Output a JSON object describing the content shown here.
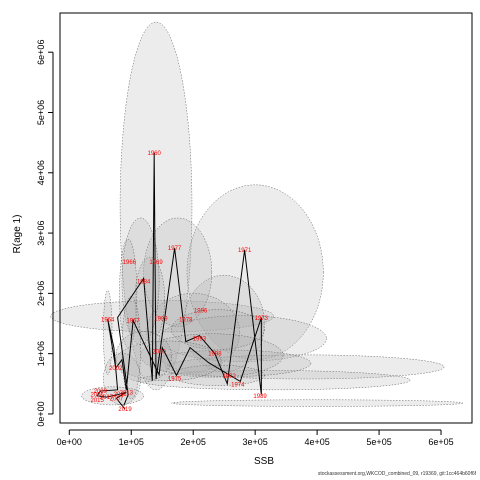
{
  "chart_data": {
    "type": "scatter",
    "title": "",
    "xlabel": "SSB",
    "ylabel": "R(age 1)",
    "xlim": [
      -15000,
      650000
    ],
    "ylim": [
      -150000,
      6650000
    ],
    "xticks": [
      0,
      100000,
      200000,
      300000,
      400000,
      500000,
      600000
    ],
    "xtick_labels": [
      "0e+00",
      "1e+05",
      "2e+05",
      "3e+05",
      "4e+05",
      "5e+05",
      "6e+05"
    ],
    "yticks": [
      0,
      1000000,
      2000000,
      3000000,
      4000000,
      5000000,
      6000000
    ],
    "ytick_labels": [
      "0e+00",
      "1e+06",
      "2e+06",
      "3e+06",
      "4e+06",
      "5e+06",
      "6e+06"
    ],
    "grid": false,
    "legend": "none",
    "colors": {
      "line": "#000000",
      "labels": "#ff0000",
      "ellipse_fill": "#a9a9a9",
      "ellipse_stroke": "#555555"
    },
    "series": [
      {
        "points": [
          {
            "label": "1960",
            "x": 137000,
            "y": 4330000
          },
          {
            "label": "1964",
            "x": 62000,
            "y": 1570000
          },
          {
            "label": "1966",
            "x": 97000,
            "y": 2520000
          },
          {
            "label": "1967",
            "x": 103000,
            "y": 1550000
          },
          {
            "label": "1969",
            "x": 140000,
            "y": 2520000
          },
          {
            "label": "1971",
            "x": 283000,
            "y": 2720000
          },
          {
            "label": "1972",
            "x": 258000,
            "y": 630000
          },
          {
            "label": "1973",
            "x": 310000,
            "y": 1590000
          },
          {
            "label": "1974",
            "x": 272000,
            "y": 490000
          },
          {
            "label": "1975",
            "x": 170000,
            "y": 590000
          },
          {
            "label": "1977",
            "x": 170000,
            "y": 2750000
          },
          {
            "label": "1978",
            "x": 188000,
            "y": 1570000
          },
          {
            "label": "1984",
            "x": 120000,
            "y": 2200000
          },
          {
            "label": "1989",
            "x": 308000,
            "y": 300000
          },
          {
            "label": "1993",
            "x": 210000,
            "y": 1250000
          },
          {
            "label": "1996",
            "x": 212000,
            "y": 1720000
          },
          {
            "label": "1998",
            "x": 235000,
            "y": 1000000
          },
          {
            "label": "1999",
            "x": 148000,
            "y": 1580000
          },
          {
            "label": "2000",
            "x": 145000,
            "y": 1040000
          },
          {
            "label": "2002",
            "x": 75000,
            "y": 760000
          },
          {
            "label": "2005",
            "x": 45000,
            "y": 320000
          },
          {
            "label": "2007",
            "x": 76000,
            "y": 260000
          },
          {
            "label": "2009",
            "x": 50000,
            "y": 380000
          },
          {
            "label": "2011",
            "x": 82000,
            "y": 330000
          },
          {
            "label": "2013",
            "x": 92000,
            "y": 360000
          },
          {
            "label": "2015",
            "x": 45000,
            "y": 230000
          },
          {
            "label": "2017",
            "x": 60000,
            "y": 280000
          },
          {
            "label": "2019",
            "x": 90000,
            "y": 80000
          }
        ],
        "path": [
          [
            88000,
            140000
          ],
          [
            95000,
            320000
          ],
          [
            78000,
            1600000
          ],
          [
            120000,
            2250000
          ],
          [
            134000,
            550000
          ],
          [
            137000,
            4330000
          ],
          [
            140000,
            580000
          ],
          [
            170000,
            2750000
          ],
          [
            188000,
            1200000
          ],
          [
            210000,
            1300000
          ],
          [
            235000,
            1000000
          ],
          [
            255000,
            500000
          ],
          [
            283000,
            2720000
          ],
          [
            310000,
            320000
          ],
          [
            310000,
            1600000
          ],
          [
            276000,
            540000
          ],
          [
            225000,
            850000
          ],
          [
            195000,
            1100000
          ],
          [
            173000,
            640000
          ],
          [
            150000,
            1100000
          ],
          [
            145000,
            650000
          ],
          [
            103000,
            1550000
          ],
          [
            92000,
            400000
          ],
          [
            85000,
            900000
          ],
          [
            75000,
            760000
          ],
          [
            62000,
            1570000
          ],
          [
            72000,
            1100000
          ],
          [
            78000,
            400000
          ],
          [
            50000,
            380000
          ],
          [
            45000,
            300000
          ],
          [
            60000,
            280000
          ],
          [
            82000,
            330000
          ],
          [
            92000,
            360000
          ],
          [
            76000,
            260000
          ],
          [
            90000,
            80000
          ]
        ],
        "ellipses": [
          {
            "cx": 140000,
            "cy": 3450000,
            "rx": 58000,
            "ry": 3050000
          },
          {
            "cx": 150000,
            "cy": 1620000,
            "rx": 180000,
            "ry": 260000
          },
          {
            "cx": 300000,
            "cy": 2350000,
            "rx": 110000,
            "ry": 1450000
          },
          {
            "cx": 250000,
            "cy": 1500000,
            "rx": 65000,
            "ry": 800000
          },
          {
            "cx": 200000,
            "cy": 1350000,
            "rx": 75000,
            "ry": 650000
          },
          {
            "cx": 175000,
            "cy": 2350000,
            "rx": 55000,
            "ry": 900000
          },
          {
            "cx": 130000,
            "cy": 1900000,
            "rx": 24000,
            "ry": 700000
          },
          {
            "cx": 115000,
            "cy": 2200000,
            "rx": 30000,
            "ry": 1050000
          },
          {
            "cx": 95000,
            "cy": 2000000,
            "rx": 14000,
            "ry": 900000
          },
          {
            "cx": 62000,
            "cy": 1350000,
            "rx": 7000,
            "ry": 700000
          },
          {
            "cx": 280000,
            "cy": 1250000,
            "rx": 135000,
            "ry": 380000
          },
          {
            "cx": 240000,
            "cy": 1400000,
            "rx": 75000,
            "ry": 330000
          },
          {
            "cx": 400000,
            "cy": 180000,
            "rx": 235000,
            "ry": 55000
          },
          {
            "cx": 380000,
            "cy": 780000,
            "rx": 225000,
            "ry": 200000
          },
          {
            "cx": 330000,
            "cy": 560000,
            "rx": 220000,
            "ry": 160000
          },
          {
            "cx": 260000,
            "cy": 840000,
            "rx": 130000,
            "ry": 220000
          },
          {
            "cx": 230000,
            "cy": 970000,
            "rx": 115000,
            "ry": 360000
          },
          {
            "cx": 240000,
            "cy": 640000,
            "rx": 75000,
            "ry": 170000
          },
          {
            "cx": 160000,
            "cy": 880000,
            "rx": 85000,
            "ry": 330000
          },
          {
            "cx": 120000,
            "cy": 950000,
            "rx": 45000,
            "ry": 420000
          },
          {
            "cx": 85000,
            "cy": 580000,
            "rx": 30000,
            "ry": 430000
          },
          {
            "cx": 70000,
            "cy": 300000,
            "rx": 50000,
            "ry": 150000
          },
          {
            "cx": 100000,
            "cy": 1100000,
            "rx": 15000,
            "ry": 850000
          }
        ]
      }
    ]
  },
  "footer": "stockassessment.org,WKCOD_combined_09, r19369, git:1cc464b60f6f"
}
